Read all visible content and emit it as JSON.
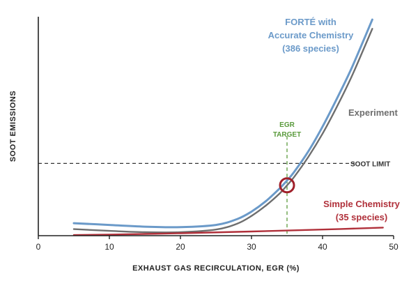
{
  "chart_data": {
    "type": "line",
    "xlabel": "EXHAUST GAS RECIRCULATION, EGR (%)",
    "ylabel": "SOOT EMISSIONS",
    "xlim": [
      0,
      50
    ],
    "ylim": [
      0,
      100
    ],
    "xticks": [
      0,
      10,
      20,
      30,
      40,
      50
    ],
    "colors": {
      "forte": "#6b9ac9",
      "experiment": "#6e6e6e",
      "simple": "#b0303a",
      "egr_target": "#5a9a3c",
      "soot_limit": "#333333",
      "circle": "#a0202a"
    },
    "series": [
      {
        "key": "forte",
        "label_lines": [
          "FORTÉ with",
          "Accurate Chemistry",
          "(386 species)"
        ],
        "x": [
          5,
          10,
          15,
          20,
          25,
          28,
          30,
          32,
          34,
          35,
          36,
          38,
          40,
          42,
          44,
          46,
          47
        ],
        "y": [
          5.7,
          4.9,
          4.1,
          3.9,
          4.9,
          7.6,
          11.0,
          15.7,
          21.7,
          25.2,
          29.1,
          38.5,
          49.8,
          62.5,
          75.9,
          91.0,
          98.7
        ]
      },
      {
        "key": "experiment",
        "label_lines": [
          "Experiment"
        ],
        "x": [
          5,
          10,
          15,
          20,
          25,
          28,
          30,
          32,
          34,
          35,
          36,
          38,
          40,
          42,
          44,
          46,
          47
        ],
        "y": [
          3.0,
          2.2,
          1.6,
          1.6,
          2.8,
          5.5,
          9.0,
          13.7,
          19.4,
          23.0,
          26.8,
          36.0,
          46.6,
          58.8,
          72.0,
          86.9,
          94.5
        ]
      },
      {
        "key": "simple",
        "label_lines": [
          "Simple Chemistry",
          "(35 species)"
        ],
        "x": [
          5,
          10,
          20,
          30,
          40,
          48.5
        ],
        "y": [
          0.3,
          0.5,
          1.1,
          1.9,
          2.8,
          3.7
        ]
      }
    ],
    "reference_lines": {
      "soot_limit": {
        "y": 33,
        "label": "SOOT LIMIT"
      },
      "egr_target": {
        "x": 35,
        "label_lines": [
          "EGR",
          "TARGET"
        ]
      }
    },
    "highlight_point": {
      "x": 35,
      "y": 23
    }
  }
}
